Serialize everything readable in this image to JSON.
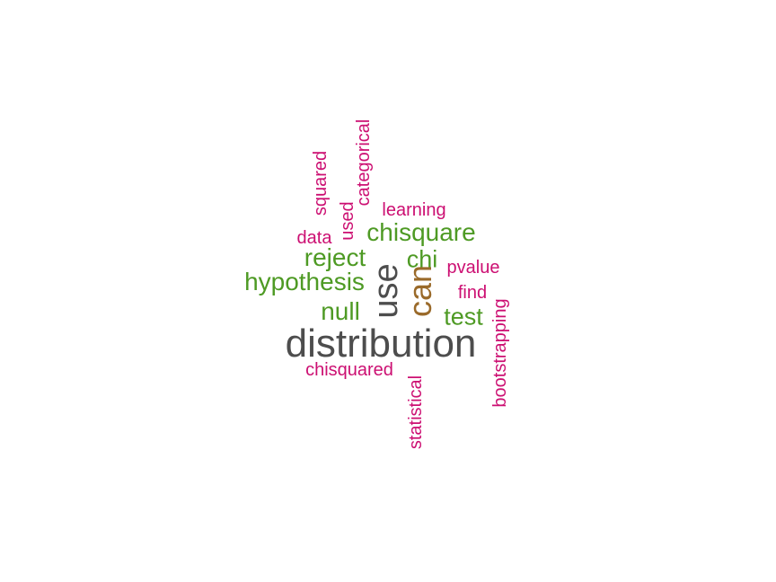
{
  "colors": {
    "dark_gray": "#4d4d4d",
    "brown": "#9a6a2a",
    "green": "#4e9a24",
    "magenta": "#cc0f72"
  },
  "words": {
    "distribution": "distribution",
    "use": "use",
    "can": "can",
    "hypothesis": "hypothesis",
    "chisquare": "chisquare",
    "reject": "reject",
    "null": "null",
    "chi": "chi",
    "test": "test",
    "categorical": "categorical",
    "squared": "squared",
    "used": "used",
    "learning": "learning",
    "data": "data",
    "pvalue": "pvalue",
    "find": "find",
    "bootstrapping": "bootstrapping",
    "chisquared": "chisquared",
    "statistical": "statistical"
  }
}
